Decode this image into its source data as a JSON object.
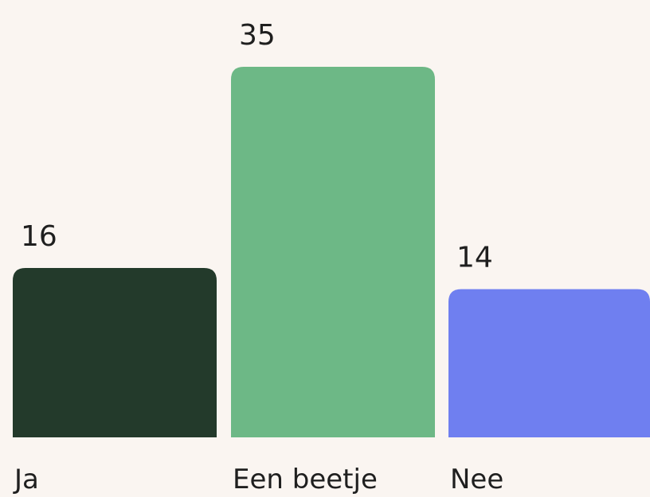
{
  "chart_data": {
    "type": "bar",
    "categories": [
      "Ja",
      "Een beetje",
      "Nee"
    ],
    "values": [
      16,
      35,
      14
    ],
    "colors": [
      "#233a2b",
      "#6db886",
      "#6f7ff0"
    ],
    "show_data_labels": true,
    "grid": false,
    "legend": "none",
    "ylim": [
      0,
      35
    ]
  }
}
